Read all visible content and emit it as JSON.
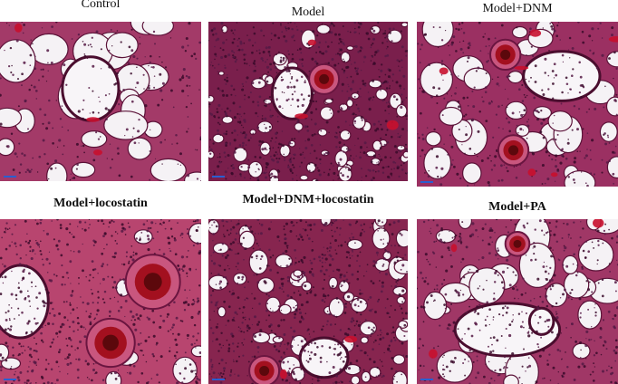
{
  "figure": {
    "panels": [
      {
        "label": "Control",
        "style": "sparse"
      },
      {
        "label": "Model",
        "style": "dense"
      },
      {
        "label": "Model+DNM",
        "style": "airway"
      },
      {
        "label": "Model+locostatin",
        "style": "vessels"
      },
      {
        "label": "Model+DNM+locostatin",
        "style": "dense-lumen"
      },
      {
        "label": "Model+PA",
        "style": "mixed"
      }
    ]
  }
}
